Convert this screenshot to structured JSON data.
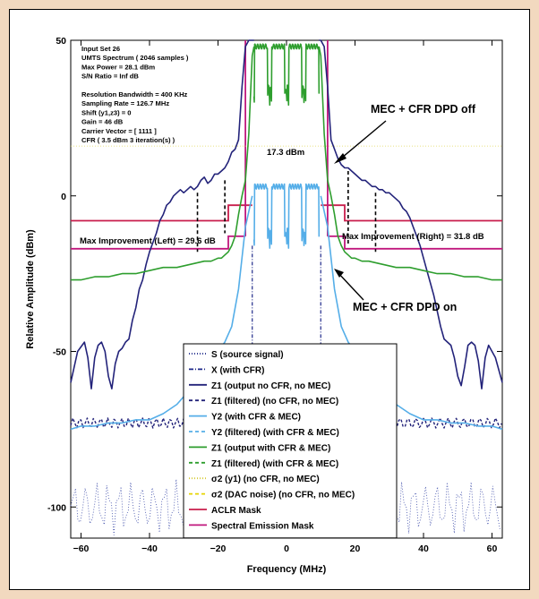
{
  "chart_data": {
    "type": "line",
    "xlabel": "Frequency (MHz)",
    "ylabel": "Relative Amplitude (dBm)",
    "xlim": [
      -63,
      63
    ],
    "ylim": [
      -110,
      50
    ],
    "x_ticks": [
      -60,
      -40,
      -20,
      0,
      20,
      40,
      60
    ],
    "y_ticks": [
      50,
      0,
      -50,
      -100
    ],
    "y_tick_labels": [
      "50",
      "0",
      "-50",
      "-100"
    ],
    "grid": false,
    "info_lines": [
      "Input Set 26",
      "UMTS Spectrum ( 2046 samples )",
      "Max Power = 28.1 dBm",
      "S/N Ratio = Inf dB",
      "",
      "Resolution Bandwidth = 400 KHz",
      "Sampling Rate = 126.7 MHz",
      "Shift (y1,z3) = 0",
      "Gain = 46 dB",
      "Carrier Vector = [  1111 ]",
      "CFR ( 3.5 dBm   3 iteration(s) )"
    ],
    "annotations": {
      "dpd_off": "MEC + CFR DPD off",
      "dpd_on": "MEC + CFR DPD on",
      "power": "17.3 dBm",
      "max_left": "Max Improvement (Left) = 29.6 dB",
      "max_right": "Max Improvement (Right) = 31.8 dB"
    },
    "legend_position": "bottom-center",
    "legend": [
      {
        "label": "S (source signal)",
        "color": "#1f2a8a",
        "style": "dotted"
      },
      {
        "label": "X (with CFR)",
        "color": "#1f2a8a",
        "style": "dashdot"
      },
      {
        "label": "Z1 (output no CFR, no MEC)",
        "color": "#23237a",
        "style": "solid"
      },
      {
        "label": "Z1 (filtered) (no CFR, no MEC)",
        "color": "#23237a",
        "style": "dashed"
      },
      {
        "label": "Y2 (with CFR & MEC)",
        "color": "#55aee8",
        "style": "solid"
      },
      {
        "label": "Y2 (filtered) (with CFR & MEC)",
        "color": "#55aee8",
        "style": "dashed"
      },
      {
        "label": "Z1 (output with CFR & MEC)",
        "color": "#2e9e2e",
        "style": "solid"
      },
      {
        "label": "Z1 (filtered) (with CFR & MEC)",
        "color": "#2e9e2e",
        "style": "dashed"
      },
      {
        "label": "σ2 (y1) (no CFR, no MEC)",
        "color": "#d6cc3a",
        "style": "dotted"
      },
      {
        "label": "σ2 (DAC noise) (no CFR, no MEC)",
        "color": "#e6d400",
        "style": "dashed"
      },
      {
        "label": "ACLR Mask",
        "color": "#c81e4c",
        "style": "solid"
      },
      {
        "label": "Spectral Emission Mask",
        "color": "#c0187e",
        "style": "solid"
      }
    ],
    "series": [
      {
        "name": "Z1 (output no CFR, no MEC)",
        "color": "#23237a",
        "x": [
          -63,
          -61,
          -59,
          -58,
          -57,
          -56,
          -55,
          -54,
          -53,
          -52,
          -51,
          -50,
          -49,
          -48,
          -47,
          -46,
          -45,
          -44,
          -43,
          -42,
          -41,
          -40,
          -39,
          -38,
          -37,
          -36,
          -35,
          -34,
          -33,
          -32,
          -31,
          -30,
          -29,
          -28,
          -27,
          -26,
          -25,
          -24,
          -23,
          -22,
          -21,
          -20,
          -19,
          -18,
          -17,
          -16,
          -15,
          -14,
          -13,
          -12,
          -11,
          -10,
          -9.5
        ],
        "y": [
          -60,
          -50,
          -47,
          -52,
          -62,
          -52,
          -48,
          -47,
          -50,
          -58,
          -62,
          -54,
          -50,
          -49,
          -47,
          -46,
          -40,
          -36,
          -30,
          -27,
          -22,
          -18,
          -15,
          -12,
          -8,
          -6,
          -3,
          -2,
          0,
          1,
          2,
          1,
          2,
          3,
          2,
          3,
          5,
          6,
          4,
          5,
          7,
          7,
          8,
          9,
          11,
          14,
          15,
          18,
          35,
          48,
          50,
          50,
          50
        ]
      },
      {
        "name": "Z1 (output no CFR, no MEC) right",
        "color": "#23237a",
        "x": [
          9.5,
          10,
          11,
          12,
          13,
          14,
          15,
          16,
          17,
          18,
          19,
          20,
          21,
          22,
          23,
          24,
          25,
          26,
          27,
          28,
          29,
          30,
          31,
          32,
          33,
          34,
          35,
          36,
          37,
          38,
          39,
          40,
          41,
          42,
          43,
          44,
          45,
          46,
          47,
          48,
          49,
          50,
          51,
          52,
          53,
          54,
          55,
          56,
          57,
          58,
          59,
          60,
          61,
          63
        ],
        "y": [
          50,
          50,
          48,
          35,
          18,
          15,
          12,
          10,
          9,
          9,
          8,
          7,
          6,
          5,
          5,
          4,
          3,
          3,
          2,
          2,
          1,
          1,
          0,
          -1,
          -2,
          -4,
          -5,
          -7,
          -10,
          -13,
          -16,
          -20,
          -24,
          -28,
          -32,
          -37,
          -42,
          -46,
          -47,
          -48,
          -52,
          -58,
          -61,
          -55,
          -48,
          -47,
          -48,
          -53,
          -62,
          -52,
          -48,
          -50,
          -52,
          -60
        ]
      },
      {
        "name": "Z1 (output with CFR & MEC)",
        "color": "#2e9e2e",
        "x": [
          -63,
          -60,
          -56,
          -52,
          -48,
          -44,
          -40,
          -36,
          -32,
          -28,
          -24,
          -22,
          -20,
          -19,
          -18,
          -17,
          -16,
          -15,
          -14,
          -13,
          -12,
          -11,
          -10,
          -9.5
        ],
        "y": [
          -27,
          -27,
          -26,
          -26,
          -25,
          -25,
          -24,
          -23,
          -23,
          -22,
          -21,
          -21,
          -20,
          -20,
          -19,
          -18,
          -16,
          -13,
          -6,
          0,
          5,
          20,
          45,
          48
        ]
      },
      {
        "name": "Z1 (output with CFR & MEC) right",
        "color": "#2e9e2e",
        "x": [
          9.5,
          10,
          11,
          12,
          13,
          14,
          15,
          16,
          17,
          18,
          19,
          20,
          22,
          24,
          28,
          32,
          36,
          40,
          44,
          48,
          52,
          56,
          60,
          63
        ],
        "y": [
          48,
          45,
          20,
          5,
          0,
          -6,
          -13,
          -16,
          -18,
          -19,
          -20,
          -20,
          -21,
          -21,
          -22,
          -23,
          -23,
          -24,
          -25,
          -25,
          -26,
          -26,
          -27,
          -27
        ]
      },
      {
        "name": "Y2 (with CFR & MEC) left",
        "color": "#55aee8",
        "x": [
          -63,
          -60,
          -56,
          -52,
          -48,
          -44,
          -40,
          -36,
          -32,
          -28,
          -24,
          -22,
          -20,
          -18,
          -16,
          -14,
          -12,
          -11,
          -10
        ],
        "y": [
          -75,
          -74,
          -74,
          -73,
          -73,
          -72,
          -72,
          -70,
          -67,
          -62,
          -57,
          -53,
          -50,
          -47,
          -42,
          -30,
          -10,
          -5,
          0
        ]
      },
      {
        "name": "Y2 (with CFR & MEC) right",
        "color": "#55aee8",
        "x": [
          10,
          11,
          12,
          14,
          16,
          18,
          20,
          22,
          24,
          28,
          32,
          36,
          40,
          44,
          48,
          52,
          56,
          60,
          63
        ],
        "y": [
          0,
          -5,
          -10,
          -30,
          -42,
          -47,
          -50,
          -53,
          -57,
          -62,
          -67,
          -70,
          -72,
          -72,
          -73,
          -73,
          -74,
          -74,
          -75
        ]
      }
    ],
    "channel_peaks": {
      "center_mhz": [
        -7.5,
        -2.5,
        2.5,
        7.5
      ],
      "top_db": 48,
      "notch_db": 30
    },
    "ylinefiltered_top_db": 3,
    "aclr_mask": [
      [
        -63,
        -8
      ],
      [
        -17,
        -8
      ],
      [
        -17,
        -3
      ],
      [
        -10,
        -3
      ]
    ],
    "aclr_mask_right": [
      [
        10,
        -3
      ],
      [
        17,
        -3
      ],
      [
        17,
        -8
      ],
      [
        63,
        -8
      ]
    ],
    "sem_mask_left": [
      [
        -63,
        -17
      ],
      [
        -17,
        -17
      ],
      [
        -17,
        -13
      ],
      [
        -12,
        -13
      ]
    ],
    "sem_mask_right": [
      [
        12,
        -13
      ],
      [
        17,
        -13
      ],
      [
        17,
        -17
      ],
      [
        63,
        -17
      ]
    ]
  }
}
